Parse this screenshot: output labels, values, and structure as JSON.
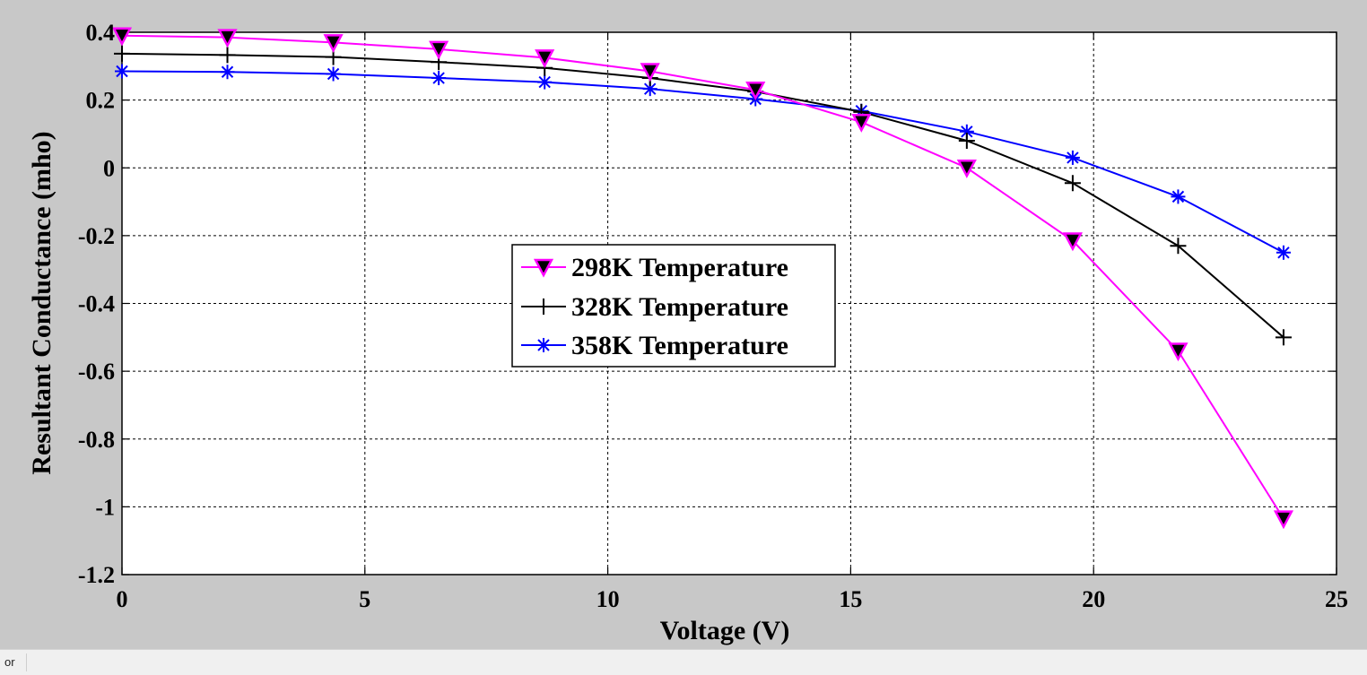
{
  "chart_data": {
    "type": "line",
    "xlabel": "Voltage (V)",
    "ylabel": "Resultant Conductance (mho)",
    "xlim": [
      0,
      25
    ],
    "ylim": [
      -1.2,
      0.4
    ],
    "xticks": [
      0,
      5,
      10,
      15,
      20,
      25
    ],
    "yticks": [
      0.4,
      0.2,
      0,
      -0.2,
      -0.4,
      -0.6,
      -0.8,
      -1,
      -1.2
    ],
    "grid": true,
    "legend_position": "center",
    "x": [
      0,
      2.17,
      4.35,
      6.52,
      8.7,
      10.87,
      13.04,
      15.22,
      17.39,
      19.57,
      21.74,
      23.91
    ],
    "series": [
      {
        "name": "298K Temperature",
        "color": "#ff00ff",
        "marker": "triangle-down",
        "values": [
          0.39,
          0.385,
          0.37,
          0.35,
          0.325,
          0.285,
          0.23,
          0.135,
          0.0,
          -0.215,
          -0.54,
          -1.035
        ]
      },
      {
        "name": "328K Temperature",
        "color": "#000000",
        "marker": "plus",
        "values": [
          0.337,
          0.333,
          0.327,
          0.312,
          0.295,
          0.265,
          0.225,
          0.165,
          0.08,
          -0.045,
          -0.23,
          -0.5
        ]
      },
      {
        "name": "358K Temperature",
        "color": "#0000ff",
        "marker": "asterisk",
        "values": [
          0.285,
          0.283,
          0.277,
          0.265,
          0.253,
          0.233,
          0.203,
          0.168,
          0.107,
          0.03,
          -0.085,
          -0.25
        ]
      }
    ]
  },
  "status_bar": {
    "text": "or"
  }
}
